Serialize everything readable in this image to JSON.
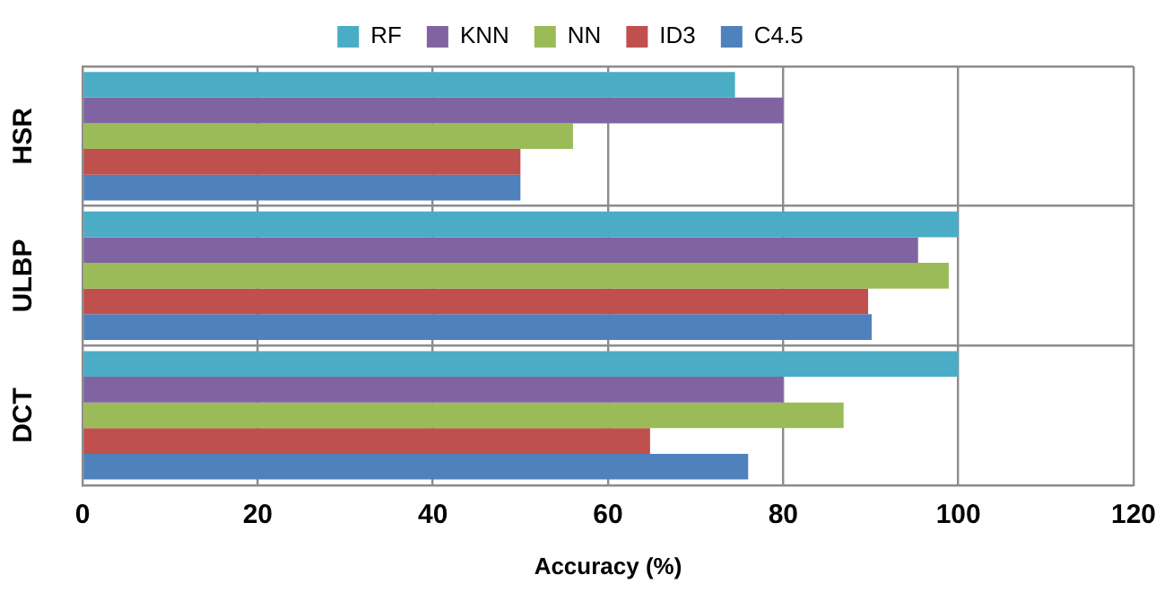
{
  "chart_data": {
    "type": "bar",
    "orientation": "horizontal",
    "xlabel": "Accuracy (%)",
    "categories": [
      "HSR",
      "ULBP",
      "DCT"
    ],
    "series": [
      {
        "name": "RF",
        "color": "#4bacc6",
        "values": [
          74.5,
          100,
          100
        ]
      },
      {
        "name": "KNN",
        "color": "#8064a2",
        "values": [
          80,
          95.4,
          80
        ]
      },
      {
        "name": "NN",
        "color": "#9bbb59",
        "values": [
          56,
          98.9,
          86.9
        ]
      },
      {
        "name": "ID3",
        "color": "#c0504d",
        "values": [
          50,
          89.7,
          64.8
        ]
      },
      {
        "name": "C4.5",
        "color": "#4f81bd",
        "values": [
          50,
          90.1,
          76
        ]
      }
    ],
    "xlim": [
      0,
      120
    ],
    "xticks": [
      0,
      20,
      40,
      60,
      80,
      100,
      120
    ],
    "grid": true,
    "legend": "top"
  }
}
